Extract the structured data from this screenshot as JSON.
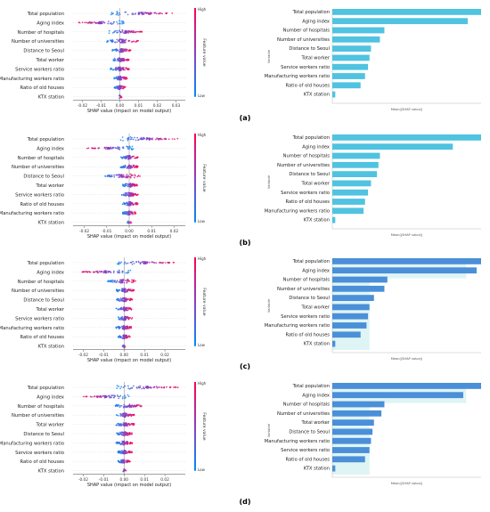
{
  "figure": {
    "panels": [
      {
        "label": "(a)",
        "beeswarm": {
          "features": [
            "Total population",
            "Aging index",
            "Number of hospitals",
            "Number of universities",
            "Distance to Seoul",
            "Total worker",
            "Service workers ratio",
            "Manufacturing workers ratio",
            "Ratio of old houses",
            "KTX station"
          ],
          "xticks": [
            "-0.02",
            "-0.01",
            "0.00",
            "0.01",
            "0.02",
            "0.03"
          ],
          "xlabel": "SHAP value (impact on model output)",
          "colorbar": {
            "high": "High",
            "low": "Low",
            "label": "Feature value"
          }
        },
        "bar": {
          "features": [
            "Total population",
            "Aging index",
            "Number of hospitals",
            "Number of universities",
            "Distance to Seoul",
            "Total worker",
            "Service workers ratio",
            "Manufacturing workers ratio",
            "Ratio of old houses",
            "KTX station"
          ],
          "ylabel": "Variable",
          "xlabel": "Mean(|SHAP value|)"
        }
      },
      {
        "label": "(b)",
        "beeswarm": {
          "features": [
            "Total population",
            "Aging index",
            "Number of hospitals",
            "Number of universities",
            "Distance to Seoul",
            "Total worker",
            "Service workers ratio",
            "Ratio of old houses",
            "Manufacturing workers ratio",
            "KTX station"
          ],
          "xticks": [
            "-0.02",
            "-0.01",
            "0.00",
            "0.01",
            "0.02"
          ],
          "xlabel": "SHAP value (impact on model output)",
          "colorbar": {
            "high": "High",
            "low": "Low",
            "label": "Feature value"
          }
        },
        "bar": {
          "features": [
            "Total population",
            "Aging index",
            "Number of hospitals",
            "Number of universities",
            "Distance to Seoul",
            "Total worker",
            "Service workers ratio",
            "Ratio of old houses",
            "Manufacturing workers ratio",
            "KTX station"
          ],
          "ylabel": "Variable",
          "xlabel": "Mean(|SHAP value|)"
        }
      },
      {
        "label": "(c)",
        "beeswarm": {
          "features": [
            "Total population",
            "Aging index",
            "Number of hospitals",
            "Number of universities",
            "Distance to Seoul",
            "Total worker",
            "Service workers ratio",
            "Manufacturing workers ratio",
            "Ratio of old houses",
            "KTX station"
          ],
          "xticks": [
            "-0.02",
            "-0.01",
            "0.00",
            "0.01",
            "0.02"
          ],
          "xlabel": "SHAP value (impact on model output)",
          "colorbar": {
            "high": "High",
            "low": "Low",
            "label": "Feature value"
          }
        },
        "bar": {
          "features": [
            "Total population",
            "Aging index",
            "Number of hospitals",
            "Number of universities",
            "Distance to Seoul",
            "Total worker",
            "Service workers ratio",
            "Manufacturing workers ratio",
            "Ratio of old houses",
            "KTX station"
          ],
          "ylabel": "Variable",
          "xlabel": "Mean(|SHAP value|)"
        }
      },
      {
        "label": "(d)",
        "beeswarm": {
          "features": [
            "Total population",
            "Aging index",
            "Number of hospitals",
            "Number of universities",
            "Total worker",
            "Distance to Seoul",
            "Manufacturing workers ratio",
            "Service workers ratio",
            "Ratio of old houses",
            "KTX station"
          ],
          "xticks": [
            "-0.02",
            "-0.01",
            "0.00",
            "0.01",
            "0.02"
          ],
          "xlabel": "SHAP value (impact on model output)",
          "colorbar": {
            "high": "High",
            "low": "Low",
            "label": "Feature value"
          }
        },
        "bar": {
          "features": [
            "Total population",
            "Aging index",
            "Number of hospitals",
            "Number of universities",
            "Total worker",
            "Distance to Seoul",
            "Manufacturing workers ratio",
            "Service workers ratio",
            "Ratio of old houses",
            "KTX station"
          ],
          "ylabel": "Variable",
          "xlabel": "Mean(|SHAP value|)"
        }
      }
    ]
  },
  "chart_data": [
    {
      "type": "scatter",
      "subtype": "shap-beeswarm",
      "panel": "(a)",
      "categories": [
        "Total population",
        "Aging index",
        "Number of hospitals",
        "Number of universities",
        "Distance to Seoul",
        "Total worker",
        "Service workers ratio",
        "Manufacturing workers ratio",
        "Ratio of old houses",
        "KTX station"
      ],
      "xlabel": "SHAP value (impact on model output)",
      "xlim": [
        -0.025,
        0.035
      ],
      "xticks": [
        -0.02,
        -0.01,
        0.0,
        0.01,
        0.02,
        0.03
      ],
      "spread": [
        [
          -0.005,
          0.03
        ],
        [
          -0.023,
          0.003
        ],
        [
          -0.006,
          0.012
        ],
        [
          -0.007,
          0.01
        ],
        [
          -0.004,
          0.006
        ],
        [
          -0.004,
          0.005
        ],
        [
          -0.005,
          0.005
        ],
        [
          -0.003,
          0.004
        ],
        [
          -0.003,
          0.003
        ],
        [
          -0.001,
          0.001
        ]
      ],
      "colorbar": {
        "high": "High",
        "low": "Low",
        "label": "Feature value"
      },
      "colors": {
        "high": "#ff0052",
        "low": "#008bfb",
        "mid": "#8b3fc0"
      }
    },
    {
      "type": "bar",
      "orientation": "horizontal",
      "panel": "(a)",
      "categories": [
        "Total population",
        "Aging index",
        "Number of hospitals",
        "Number of universities",
        "Distance to Seoul",
        "Total worker",
        "Service workers ratio",
        "Manufacturing workers ratio",
        "Ratio of old houses",
        "KTX station"
      ],
      "values": [
        1.0,
        0.91,
        0.35,
        0.32,
        0.26,
        0.25,
        0.24,
        0.22,
        0.19,
        0.02
      ],
      "xlabel": "Mean(|SHAP value|)",
      "ylabel": "Variable",
      "colors": {
        "bar": "#4fc3e0"
      }
    },
    {
      "type": "scatter",
      "subtype": "shap-beeswarm",
      "panel": "(b)",
      "categories": [
        "Total population",
        "Aging index",
        "Number of hospitals",
        "Number of universities",
        "Distance to Seoul",
        "Total worker",
        "Service workers ratio",
        "Ratio of old houses",
        "Manufacturing workers ratio",
        "KTX station"
      ],
      "xlabel": "SHAP value (impact on model output)",
      "xlim": [
        -0.025,
        0.025
      ],
      "xticks": [
        -0.02,
        -0.01,
        0.0,
        0.01,
        0.02
      ],
      "spread": [
        [
          -0.004,
          0.022
        ],
        [
          -0.02,
          0.002
        ],
        [
          -0.004,
          0.004
        ],
        [
          -0.004,
          0.004
        ],
        [
          -0.012,
          0.005
        ],
        [
          -0.003,
          0.004
        ],
        [
          -0.004,
          0.004
        ],
        [
          -0.003,
          0.004
        ],
        [
          -0.003,
          0.003
        ],
        [
          -0.001,
          0.001
        ]
      ],
      "colorbar": {
        "high": "High",
        "low": "Low",
        "label": "Feature value"
      },
      "colors": {
        "high": "#ff0052",
        "low": "#008bfb",
        "mid": "#8b3fc0"
      }
    },
    {
      "type": "bar",
      "orientation": "horizontal",
      "panel": "(b)",
      "categories": [
        "Total population",
        "Aging index",
        "Number of hospitals",
        "Number of universities",
        "Distance to Seoul",
        "Total worker",
        "Service workers ratio",
        "Ratio of old houses",
        "Manufacturing workers ratio",
        "KTX station"
      ],
      "values": [
        1.0,
        0.81,
        0.32,
        0.31,
        0.3,
        0.26,
        0.24,
        0.22,
        0.21,
        0.02
      ],
      "xlabel": "Mean(|SHAP value|)",
      "ylabel": "Variable",
      "colors": {
        "bar": "#4fc3e0"
      }
    },
    {
      "type": "scatter",
      "subtype": "shap-beeswarm",
      "panel": "(c)",
      "categories": [
        "Total population",
        "Aging index",
        "Number of hospitals",
        "Number of universities",
        "Distance to Seoul",
        "Total worker",
        "Service workers ratio",
        "Manufacturing workers ratio",
        "Ratio of old houses",
        "KTX station"
      ],
      "xlabel": "SHAP value (impact on model output)",
      "xlim": [
        -0.025,
        0.03
      ],
      "xticks": [
        -0.02,
        -0.01,
        0.0,
        0.01,
        0.02
      ],
      "spread": [
        [
          -0.004,
          0.025
        ],
        [
          -0.022,
          0.004
        ],
        [
          -0.008,
          0.006
        ],
        [
          -0.004,
          0.005
        ],
        [
          -0.004,
          0.004
        ],
        [
          -0.004,
          0.004
        ],
        [
          -0.003,
          0.004
        ],
        [
          -0.004,
          0.004
        ],
        [
          -0.003,
          0.003
        ],
        [
          -0.001,
          0.001
        ]
      ],
      "colorbar": {
        "high": "High",
        "low": "Low",
        "label": "Feature value"
      },
      "colors": {
        "high": "#ff0052",
        "low": "#008bfb",
        "mid": "#8b3fc0"
      }
    },
    {
      "type": "bar",
      "orientation": "horizontal",
      "panel": "(c)",
      "categories": [
        "Total population",
        "Aging index",
        "Number of hospitals",
        "Number of universities",
        "Distance to Seoul",
        "Total worker",
        "Service workers ratio",
        "Manufacturing workers ratio",
        "Ratio of old houses",
        "KTX station"
      ],
      "values": [
        1.0,
        0.97,
        0.37,
        0.35,
        0.28,
        0.25,
        0.24,
        0.23,
        0.19,
        0.02
      ],
      "xlabel": "Mean(|SHAP value|)",
      "ylabel": "Variable",
      "colors": {
        "bar": "#4a8fd8",
        "background": "#dff4f4"
      }
    },
    {
      "type": "scatter",
      "subtype": "shap-beeswarm",
      "panel": "(d)",
      "categories": [
        "Total population",
        "Aging index",
        "Number of hospitals",
        "Number of universities",
        "Total worker",
        "Distance to Seoul",
        "Manufacturing workers ratio",
        "Service workers ratio",
        "Ratio of old houses",
        "KTX station"
      ],
      "xlabel": "SHAP value (impact on model output)",
      "xlim": [
        -0.025,
        0.03
      ],
      "xticks": [
        -0.02,
        -0.01,
        0.0,
        0.01,
        0.02
      ],
      "spread": [
        [
          -0.004,
          0.027
        ],
        [
          -0.021,
          0.003
        ],
        [
          -0.005,
          0.01
        ],
        [
          -0.004,
          0.005
        ],
        [
          -0.004,
          0.005
        ],
        [
          -0.004,
          0.004
        ],
        [
          -0.004,
          0.004
        ],
        [
          -0.003,
          0.004
        ],
        [
          -0.003,
          0.003
        ],
        [
          -0.001,
          0.001
        ]
      ],
      "colorbar": {
        "high": "High",
        "low": "Low",
        "label": "Feature value"
      },
      "colors": {
        "high": "#ff0052",
        "low": "#008bfb",
        "mid": "#8b3fc0"
      }
    },
    {
      "type": "bar",
      "orientation": "horizontal",
      "panel": "(d)",
      "categories": [
        "Total population",
        "Aging index",
        "Number of hospitals",
        "Number of universities",
        "Total worker",
        "Distance to Seoul",
        "Manufacturing workers ratio",
        "Service workers ratio",
        "Ratio of old houses",
        "KTX station"
      ],
      "values": [
        1.0,
        0.88,
        0.35,
        0.33,
        0.28,
        0.27,
        0.26,
        0.25,
        0.22,
        0.02
      ],
      "xlabel": "Mean(|SHAP value|)",
      "ylabel": "Variable",
      "colors": {
        "bar": "#4a8fd8",
        "background": "#dff4f4"
      }
    }
  ]
}
